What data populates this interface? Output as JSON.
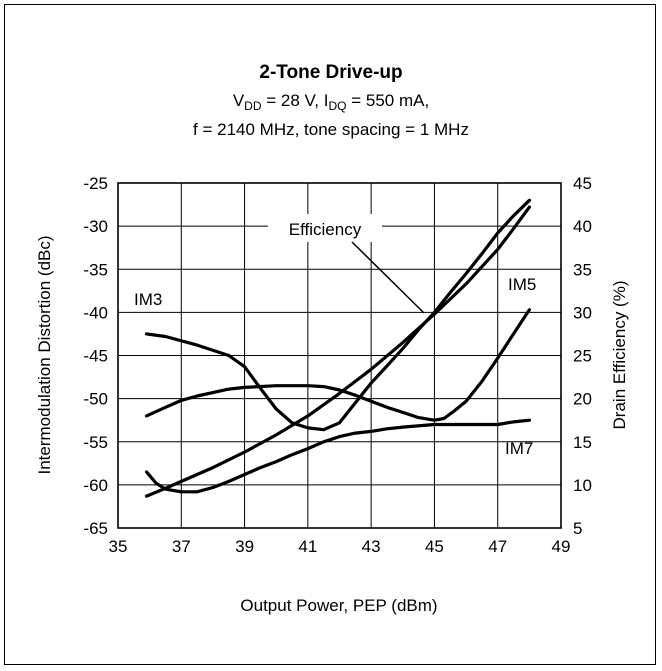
{
  "chart_data": {
    "type": "line",
    "title": "2-Tone Drive-up",
    "subtitle_line1": {
      "p1": "V",
      "s1": "DD",
      "p2": " = 28 V, I",
      "s2": "DQ",
      "p3": " = 550 mA,"
    },
    "subtitle_line2": "f = 2140 MHz, tone spacing = 1 MHz",
    "xlabel": "Output Power, PEP (dBm)",
    "ylabel_left": "Intermodulation Distortion (dBc)",
    "ylabel_right": "Drain Efficiency (%)",
    "xlim": [
      35,
      49
    ],
    "ylim_left": [
      -65,
      -25
    ],
    "ylim_right": [
      5,
      45
    ],
    "x_ticks": [
      "35",
      "37",
      "39",
      "41",
      "43",
      "45",
      "47",
      "49"
    ],
    "y_ticks_left": [
      "-25",
      "-30",
      "-35",
      "-40",
      "-45",
      "-50",
      "-55",
      "-60",
      "-65"
    ],
    "y_ticks_right": [
      "45",
      "40",
      "35",
      "30",
      "25",
      "20",
      "15",
      "10",
      "5"
    ],
    "grid": true,
    "annotations": {
      "efficiency": "Efficiency",
      "im3": "IM3",
      "im5": "IM5",
      "im7": "IM7"
    },
    "series": [
      {
        "name": "IM3",
        "axis": "left",
        "points": [
          [
            35.9,
            -42.5
          ],
          [
            36.5,
            -42.8
          ],
          [
            37.5,
            -43.8
          ],
          [
            38.5,
            -45.0
          ],
          [
            39.0,
            -46.3
          ],
          [
            39.5,
            -48.8
          ],
          [
            40.0,
            -51.2
          ],
          [
            40.5,
            -52.8
          ],
          [
            41.0,
            -53.4
          ],
          [
            41.5,
            -53.6
          ],
          [
            42.0,
            -52.8
          ],
          [
            42.5,
            -50.5
          ],
          [
            43.0,
            -48.2
          ],
          [
            43.5,
            -46.2
          ],
          [
            44.0,
            -44.2
          ],
          [
            44.5,
            -42.0
          ],
          [
            45.0,
            -40.0
          ],
          [
            45.5,
            -37.7
          ],
          [
            46.0,
            -35.5
          ],
          [
            46.5,
            -33.2
          ],
          [
            47.0,
            -30.8
          ],
          [
            47.5,
            -28.8
          ],
          [
            48.0,
            -27.0
          ]
        ]
      },
      {
        "name": "IM5",
        "axis": "left",
        "points": [
          [
            35.9,
            -52.0
          ],
          [
            36.5,
            -51.0
          ],
          [
            37.0,
            -50.2
          ],
          [
            37.5,
            -49.7
          ],
          [
            38.0,
            -49.3
          ],
          [
            38.5,
            -48.9
          ],
          [
            39.0,
            -48.7
          ],
          [
            40.0,
            -48.5
          ],
          [
            41.0,
            -48.5
          ],
          [
            41.5,
            -48.6
          ],
          [
            42.0,
            -49.0
          ],
          [
            42.5,
            -49.6
          ],
          [
            43.0,
            -50.3
          ],
          [
            43.5,
            -51.0
          ],
          [
            44.0,
            -51.6
          ],
          [
            44.5,
            -52.2
          ],
          [
            45.0,
            -52.5
          ],
          [
            45.3,
            -52.3
          ],
          [
            45.6,
            -51.5
          ],
          [
            46.0,
            -50.3
          ],
          [
            46.5,
            -48.0
          ],
          [
            47.0,
            -45.3
          ],
          [
            47.5,
            -42.5
          ],
          [
            48.0,
            -39.7
          ]
        ]
      },
      {
        "name": "IM7",
        "axis": "left",
        "points": [
          [
            35.9,
            -58.5
          ],
          [
            36.2,
            -59.8
          ],
          [
            36.5,
            -60.5
          ],
          [
            37.0,
            -60.8
          ],
          [
            37.5,
            -60.8
          ],
          [
            38.0,
            -60.3
          ],
          [
            38.5,
            -59.6
          ],
          [
            39.0,
            -58.8
          ],
          [
            39.5,
            -58.0
          ],
          [
            40.0,
            -57.3
          ],
          [
            40.5,
            -56.5
          ],
          [
            41.0,
            -55.8
          ],
          [
            41.5,
            -55.0
          ],
          [
            42.0,
            -54.4
          ],
          [
            42.5,
            -54.0
          ],
          [
            43.0,
            -53.8
          ],
          [
            43.5,
            -53.5
          ],
          [
            44.0,
            -53.3
          ],
          [
            45.0,
            -53.0
          ],
          [
            46.0,
            -53.0
          ],
          [
            47.0,
            -53.0
          ],
          [
            47.5,
            -52.7
          ],
          [
            48.0,
            -52.5
          ]
        ]
      },
      {
        "name": "Efficiency",
        "axis": "right",
        "points": [
          [
            35.9,
            8.7
          ],
          [
            36.5,
            9.6
          ],
          [
            37.0,
            10.4
          ],
          [
            38.0,
            12.0
          ],
          [
            39.0,
            13.8
          ],
          [
            40.0,
            15.8
          ],
          [
            41.0,
            18.0
          ],
          [
            42.0,
            20.6
          ],
          [
            43.0,
            23.4
          ],
          [
            44.0,
            26.5
          ],
          [
            45.0,
            29.8
          ],
          [
            46.0,
            33.3
          ],
          [
            47.0,
            37.3
          ],
          [
            47.5,
            39.7
          ],
          [
            48.0,
            42.2
          ]
        ]
      }
    ]
  }
}
